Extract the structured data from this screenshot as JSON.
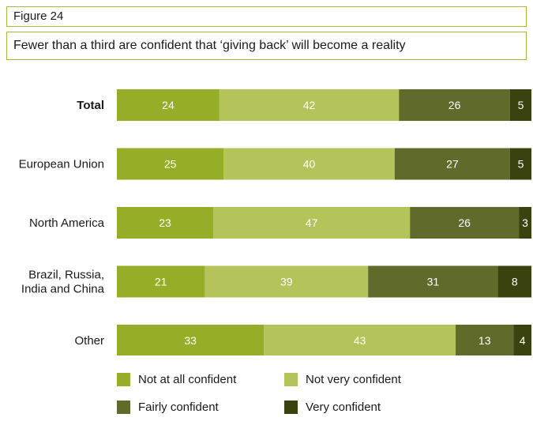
{
  "figure_label": "Figure 24",
  "figure_title": "Fewer than a third are confident that ‘giving back’ will become a reality",
  "chart_data": {
    "type": "bar",
    "orientation": "horizontal",
    "stacked": true,
    "normalized": true,
    "categories": [
      "Total",
      "European Union",
      "North America",
      "Brazil, Russia, India and China",
      "Other"
    ],
    "category_lines": [
      [
        "Total"
      ],
      [
        "European Union"
      ],
      [
        "North America"
      ],
      [
        "Brazil, Russia,",
        "India and China"
      ],
      [
        "Other"
      ]
    ],
    "bold_categories": [
      "Total"
    ],
    "series": [
      {
        "name": "Not at all confident",
        "color": "#95ad27",
        "values": [
          24,
          25,
          23,
          21,
          33
        ]
      },
      {
        "name": "Not very confident",
        "color": "#b4c35a",
        "values": [
          42,
          40,
          47,
          39,
          43
        ]
      },
      {
        "name": "Fairly confident",
        "color": "#5f6a2b",
        "values": [
          26,
          27,
          26,
          31,
          13
        ]
      },
      {
        "name": "Very confident",
        "color": "#3a4310",
        "values": [
          5,
          5,
          3,
          8,
          4
        ]
      }
    ],
    "legend_position": "bottom",
    "grid": false,
    "title": "",
    "xlabel": "",
    "ylabel": ""
  }
}
